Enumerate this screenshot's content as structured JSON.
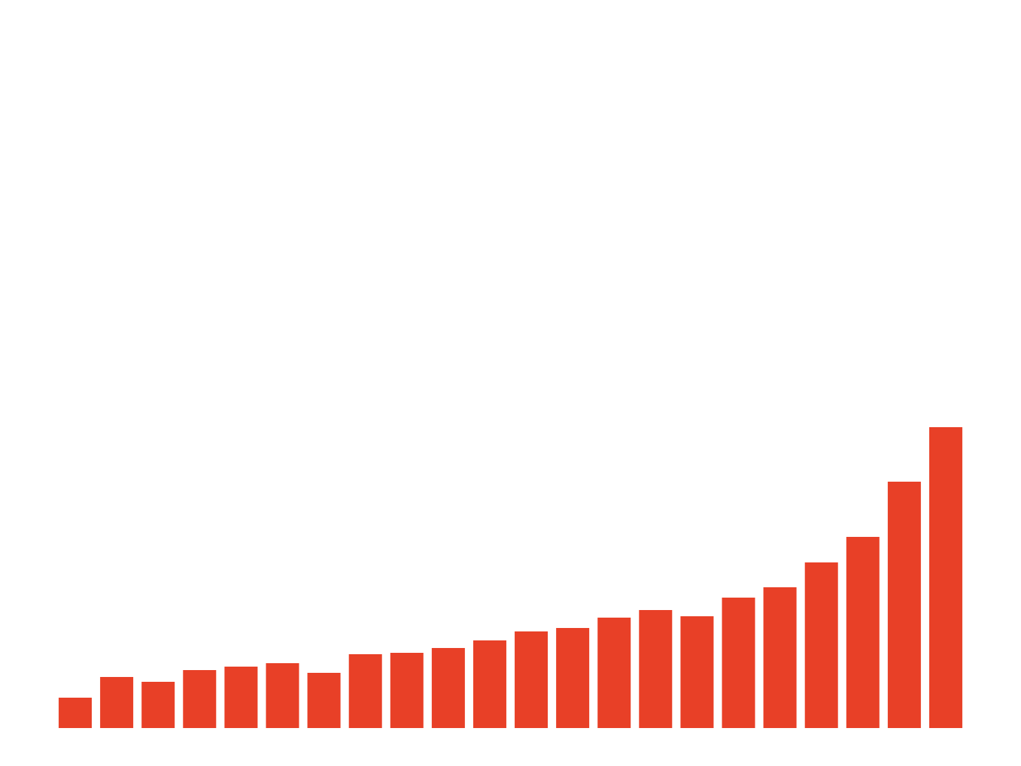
{
  "chart_data": {
    "type": "bar",
    "values": [
      44,
      74,
      67,
      84,
      89,
      94,
      80,
      107,
      109,
      116,
      127,
      140,
      145,
      160,
      171,
      162,
      189,
      204,
      240,
      277,
      357,
      436
    ],
    "color": "#e84027",
    "ylim": [
      0,
      1055
    ]
  }
}
